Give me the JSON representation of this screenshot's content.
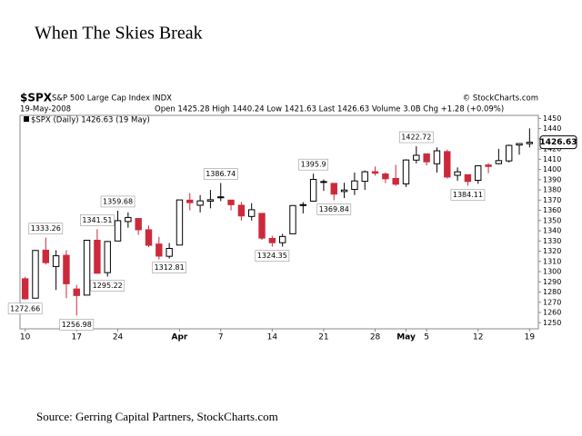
{
  "chart_data": {
    "type": "candlestick",
    "title": "When The Skies Break",
    "symbol": "$SPX",
    "index_name": "S&P 500 Large Cap Index INDX",
    "credit": "© StockCharts.com",
    "date": "19-May-2008",
    "info": "Open 1425.28 High 1440.24 Low 1421.63 Last 1426.63 Volume 3.0B Chg +1.28 (+0.09%)",
    "legend": "$SPX (Daily) 1426.63 (19 May)",
    "source": "Source: Gerring Capital Partners, StockCharts.com",
    "up_color": "#000000",
    "down_color": "#cc2a3c",
    "categories": [
      "10",
      null,
      null,
      null,
      null,
      "17",
      null,
      null,
      null,
      "24",
      null,
      null,
      null,
      null,
      null,
      "Apr",
      null,
      null,
      null,
      "7",
      null,
      null,
      null,
      null,
      "14",
      null,
      null,
      null,
      null,
      "21",
      null,
      null,
      null,
      null,
      "28",
      null,
      null,
      "May",
      null,
      "5",
      null,
      null,
      null,
      null,
      "12",
      null,
      null,
      null,
      null,
      "19"
    ],
    "open": [
      1293,
      1274,
      1321,
      1305,
      1316,
      1283,
      1277,
      1330.7,
      1299,
      1330,
      1349,
      1352,
      1341,
      1327,
      1315,
      1326,
      1370,
      1365,
      1369,
      1373.2,
      1370,
      1365,
      1354,
      1357,
      1332.5,
      1328.3,
      1337,
      1364.7,
      1369,
      1387.7,
      1386.4,
      1378.4,
      1380.5,
      1388.4,
      1397.8,
      1395.6,
      1391.2,
      1385.9,
      1409.2,
      1415.3,
      1405.6,
      1417.5,
      1394.3,
      1394.9,
      1389.4,
      1404.4,
      1405.7,
      1408.4,
      1423.9,
      1425.28
    ],
    "high": [
      1295,
      1321,
      1333.26,
      1321,
      1321,
      1287,
      1330.7,
      1341.51,
      1330,
      1359.68,
      1358,
      1352,
      1345,
      1334,
      1328,
      1370.2,
      1377,
      1375,
      1380,
      1386.74,
      1370,
      1368,
      1367,
      1357,
      1335,
      1337,
      1365,
      1368,
      1395.9,
      1390.3,
      1386.4,
      1387,
      1397,
      1399,
      1402.9,
      1397,
      1404.6,
      1410,
      1422.72,
      1415.3,
      1421.6,
      1419.5,
      1402,
      1394.9,
      1404,
      1406.3,
      1420.2,
      1424.4,
      1425.8,
      1440.24
    ],
    "low": [
      1272.66,
      1274,
      1307,
      1282,
      1274,
      1256.98,
      1277,
      1298,
      1295.22,
      1330,
      1343,
      1336,
      1324,
      1312,
      1312.81,
      1326,
      1360,
      1358,
      1362,
      1369,
      1360,
      1350,
      1350,
      1331,
      1324.35,
      1324.5,
      1337,
      1357,
      1369,
      1379,
      1369.84,
      1372,
      1375,
      1380,
      1394,
      1386.7,
      1384,
      1383,
      1406,
      1404,
      1397,
      1391.2,
      1389,
      1384.11,
      1386,
      1396.3,
      1405,
      1406.9,
      1414.5,
      1421.63
    ],
    "close": [
      1273.4,
      1320.7,
      1308.8,
      1315.5,
      1288.1,
      1276.6,
      1330.7,
      1298.4,
      1329.5,
      1349.9,
      1353,
      1341,
      1325.8,
      1315.2,
      1322.7,
      1370.2,
      1367.5,
      1369.3,
      1370.4,
      1372.5,
      1365.5,
      1354.5,
      1360.6,
      1332.8,
      1328.3,
      1334.4,
      1364.7,
      1365.6,
      1390.3,
      1388.2,
      1375.9,
      1379.9,
      1388.8,
      1397.8,
      1396.4,
      1390.9,
      1385.6,
      1409.3,
      1413.9,
      1407.5,
      1418.3,
      1392.6,
      1397.7,
      1388.3,
      1403.6,
      1403,
      1408.7,
      1423.6,
      1425.4,
      1426.63
    ],
    "high_labels": [
      2,
      7,
      9,
      19,
      28,
      38
    ],
    "low_labels": [
      0,
      5,
      8,
      14,
      24,
      30,
      43
    ],
    "ylim": [
      1244,
      1453
    ],
    "yticks": [
      1250,
      1260,
      1270,
      1280,
      1290,
      1300,
      1310,
      1320,
      1330,
      1340,
      1350,
      1360,
      1370,
      1380,
      1390,
      1400,
      1410,
      1420,
      1430,
      1440,
      1450
    ],
    "grid": false
  }
}
